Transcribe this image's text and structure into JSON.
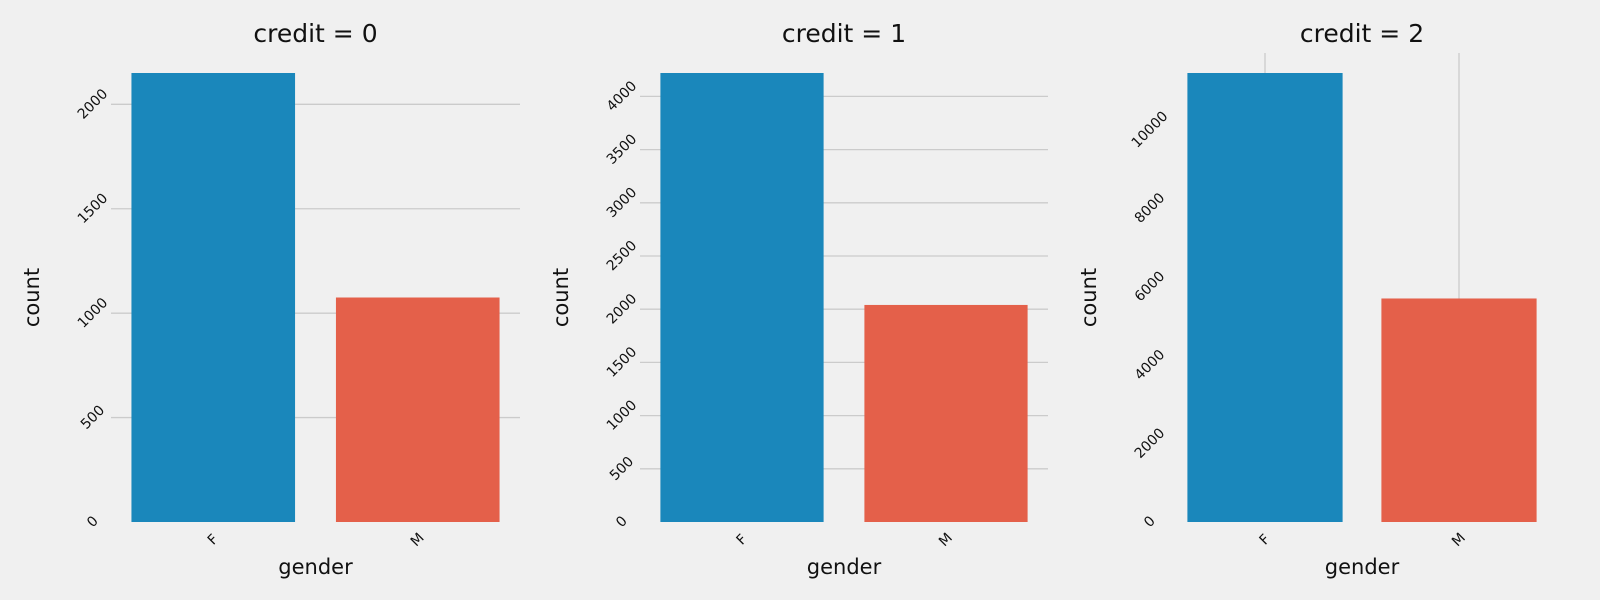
{
  "chart_data": [
    {
      "type": "bar",
      "title": "credit = 0",
      "xlabel": "gender",
      "ylabel": "count",
      "categories": [
        "F",
        "M"
      ],
      "values": [
        2150,
        1075
      ],
      "ylim": [
        0,
        2150
      ],
      "yticks": [
        0,
        500,
        1000,
        1500,
        2000
      ],
      "grid": "y"
    },
    {
      "type": "bar",
      "title": "credit = 1",
      "xlabel": "gender",
      "ylabel": "count",
      "categories": [
        "F",
        "M"
      ],
      "values": [
        4220,
        2040
      ],
      "ylim": [
        0,
        4220
      ],
      "yticks": [
        0,
        500,
        1000,
        1500,
        2000,
        2500,
        3000,
        3500,
        4000
      ],
      "grid": "y"
    },
    {
      "type": "bar",
      "title": "credit = 2",
      "xlabel": "gender",
      "ylabel": "count",
      "categories": [
        "F",
        "M"
      ],
      "values": [
        11450,
        5700
      ],
      "ylim": [
        0,
        11450
      ],
      "yticks": [
        0,
        2000,
        4000,
        6000,
        8000,
        10000
      ],
      "grid": "x"
    }
  ],
  "colors": {
    "F": "#1a87bb",
    "M": "#e4604a",
    "background": "#f0f0f0",
    "grid": "#cbcbcb"
  }
}
